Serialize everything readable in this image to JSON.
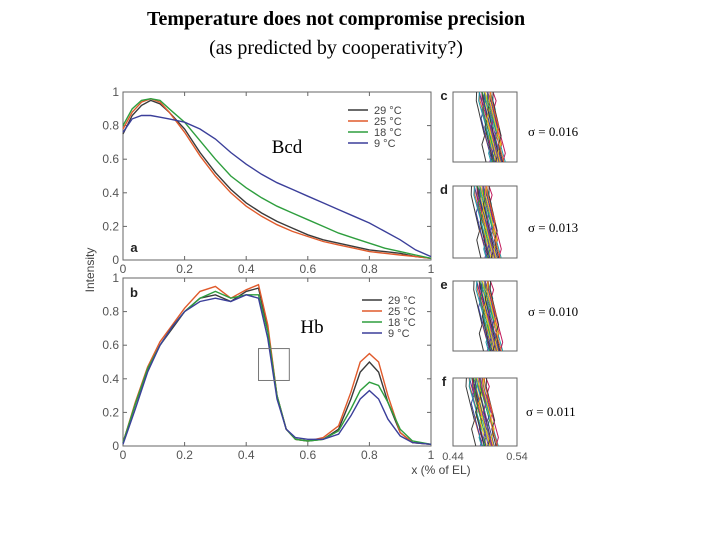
{
  "slide": {
    "title": "Temperature does not compromise precision",
    "subtitle": "(as predicted by cooperativity?)"
  },
  "chart_data": [
    {
      "type": "line",
      "panel": "a",
      "label": "Bcd",
      "ylabel": "Intensity",
      "xlim": [
        0,
        1
      ],
      "ylim": [
        0,
        1
      ],
      "xticks": [
        "0",
        "0.2",
        "0.4",
        "0.6",
        "0.8",
        "1"
      ],
      "yticks": [
        "0",
        "0.2",
        "0.4",
        "0.6",
        "0.8",
        "1"
      ],
      "legend": "top-right",
      "series": [
        {
          "name": "29 °C",
          "color": "#3a3a3a",
          "x": [
            0,
            0.03,
            0.06,
            0.09,
            0.12,
            0.15,
            0.2,
            0.25,
            0.3,
            0.35,
            0.4,
            0.45,
            0.5,
            0.55,
            0.6,
            0.65,
            0.7,
            0.75,
            0.8,
            0.85,
            0.9,
            0.95,
            1.0
          ],
          "y": [
            0.75,
            0.86,
            0.92,
            0.95,
            0.93,
            0.88,
            0.78,
            0.64,
            0.52,
            0.42,
            0.34,
            0.28,
            0.23,
            0.19,
            0.15,
            0.12,
            0.1,
            0.08,
            0.06,
            0.05,
            0.04,
            0.02,
            0.01
          ]
        },
        {
          "name": "25 °C",
          "color": "#e05a2b",
          "x": [
            0,
            0.03,
            0.06,
            0.09,
            0.12,
            0.15,
            0.2,
            0.25,
            0.3,
            0.35,
            0.4,
            0.45,
            0.5,
            0.55,
            0.6,
            0.65,
            0.7,
            0.75,
            0.8,
            0.85,
            0.9,
            0.95,
            1.0
          ],
          "y": [
            0.78,
            0.88,
            0.94,
            0.96,
            0.94,
            0.88,
            0.76,
            0.62,
            0.5,
            0.4,
            0.32,
            0.26,
            0.21,
            0.17,
            0.14,
            0.11,
            0.09,
            0.07,
            0.05,
            0.04,
            0.03,
            0.02,
            0.01
          ]
        },
        {
          "name": "18 °C",
          "color": "#2e9e3e",
          "x": [
            0,
            0.03,
            0.06,
            0.09,
            0.12,
            0.15,
            0.2,
            0.25,
            0.3,
            0.35,
            0.4,
            0.45,
            0.5,
            0.55,
            0.6,
            0.65,
            0.7,
            0.75,
            0.8,
            0.85,
            0.9,
            0.95,
            1.0
          ],
          "y": [
            0.8,
            0.9,
            0.95,
            0.96,
            0.95,
            0.9,
            0.82,
            0.71,
            0.6,
            0.5,
            0.43,
            0.37,
            0.32,
            0.28,
            0.24,
            0.2,
            0.16,
            0.13,
            0.1,
            0.07,
            0.05,
            0.03,
            0.01
          ]
        },
        {
          "name": "9 °C",
          "color": "#3b3f9a",
          "x": [
            0,
            0.03,
            0.06,
            0.09,
            0.12,
            0.15,
            0.2,
            0.25,
            0.3,
            0.35,
            0.4,
            0.45,
            0.5,
            0.55,
            0.6,
            0.65,
            0.7,
            0.75,
            0.8,
            0.85,
            0.9,
            0.95,
            1.0
          ],
          "y": [
            0.76,
            0.84,
            0.86,
            0.86,
            0.85,
            0.84,
            0.82,
            0.78,
            0.72,
            0.64,
            0.57,
            0.51,
            0.46,
            0.42,
            0.38,
            0.34,
            0.3,
            0.26,
            0.22,
            0.17,
            0.12,
            0.06,
            0.02
          ]
        }
      ]
    },
    {
      "type": "line",
      "panel": "b",
      "label": "Hb",
      "xlabel": "x (% of EL)",
      "xlim": [
        0,
        1
      ],
      "ylim": [
        0,
        1
      ],
      "xticks": [
        "0",
        "0.2",
        "0.4",
        "0.6",
        "0.8",
        "1"
      ],
      "yticks": [
        "0",
        "0.2",
        "0.4",
        "0.6",
        "0.8",
        "1"
      ],
      "legend": "top-right",
      "inset_box_x": [
        0.44,
        0.54
      ],
      "series": [
        {
          "name": "29 °C",
          "color": "#3a3a3a",
          "x": [
            0,
            0.04,
            0.08,
            0.12,
            0.16,
            0.2,
            0.25,
            0.3,
            0.35,
            0.4,
            0.44,
            0.47,
            0.5,
            0.53,
            0.56,
            0.6,
            0.65,
            0.7,
            0.74,
            0.77,
            0.8,
            0.83,
            0.86,
            0.9,
            0.94,
            1.0
          ],
          "y": [
            0.02,
            0.25,
            0.45,
            0.6,
            0.7,
            0.8,
            0.88,
            0.9,
            0.86,
            0.92,
            0.94,
            0.7,
            0.3,
            0.1,
            0.04,
            0.03,
            0.04,
            0.1,
            0.28,
            0.44,
            0.5,
            0.44,
            0.26,
            0.08,
            0.02,
            0.01
          ]
        },
        {
          "name": "25 °C",
          "color": "#e05a2b",
          "x": [
            0,
            0.04,
            0.08,
            0.12,
            0.16,
            0.2,
            0.25,
            0.3,
            0.35,
            0.4,
            0.44,
            0.47,
            0.5,
            0.53,
            0.56,
            0.6,
            0.65,
            0.7,
            0.74,
            0.77,
            0.8,
            0.83,
            0.86,
            0.9,
            0.94,
            1.0
          ],
          "y": [
            0.02,
            0.26,
            0.47,
            0.62,
            0.72,
            0.82,
            0.92,
            0.95,
            0.88,
            0.93,
            0.96,
            0.72,
            0.3,
            0.1,
            0.04,
            0.03,
            0.05,
            0.12,
            0.32,
            0.5,
            0.55,
            0.5,
            0.3,
            0.08,
            0.02,
            0.01
          ]
        },
        {
          "name": "18 °C",
          "color": "#2e9e3e",
          "x": [
            0,
            0.04,
            0.08,
            0.12,
            0.16,
            0.2,
            0.25,
            0.3,
            0.35,
            0.4,
            0.44,
            0.47,
            0.5,
            0.53,
            0.56,
            0.6,
            0.65,
            0.7,
            0.74,
            0.77,
            0.8,
            0.83,
            0.86,
            0.9,
            0.94,
            1.0
          ],
          "y": [
            0.02,
            0.25,
            0.46,
            0.6,
            0.71,
            0.8,
            0.88,
            0.92,
            0.88,
            0.9,
            0.9,
            0.68,
            0.3,
            0.1,
            0.04,
            0.03,
            0.04,
            0.09,
            0.22,
            0.33,
            0.38,
            0.36,
            0.26,
            0.1,
            0.03,
            0.01
          ]
        },
        {
          "name": "9 °C",
          "color": "#3b3f9a",
          "x": [
            0,
            0.04,
            0.08,
            0.12,
            0.16,
            0.2,
            0.25,
            0.3,
            0.35,
            0.4,
            0.44,
            0.47,
            0.5,
            0.53,
            0.56,
            0.6,
            0.65,
            0.7,
            0.74,
            0.77,
            0.8,
            0.83,
            0.86,
            0.9,
            0.94,
            1.0
          ],
          "y": [
            0.01,
            0.22,
            0.44,
            0.6,
            0.71,
            0.8,
            0.86,
            0.88,
            0.86,
            0.9,
            0.88,
            0.64,
            0.28,
            0.1,
            0.05,
            0.04,
            0.04,
            0.07,
            0.18,
            0.28,
            0.33,
            0.28,
            0.16,
            0.06,
            0.02,
            0.01
          ]
        }
      ]
    }
  ],
  "insets": [
    {
      "panel": "c",
      "sigma_label": "σ = 0.016",
      "palette": [
        "#3a3a3a",
        "#e05a2b",
        "#2e9e3e",
        "#3b3f9a",
        "#7b3fa0",
        "#1f9fa8",
        "#c2185b",
        "#e8c517"
      ]
    },
    {
      "panel": "d",
      "sigma_label": "σ = 0.013",
      "palette": [
        "#3a3a3a",
        "#e05a2b",
        "#2e9e3e",
        "#3b3f9a",
        "#7b3fa0",
        "#1f9fa8",
        "#c2185b",
        "#e8c517"
      ]
    },
    {
      "panel": "e",
      "sigma_label": "σ = 0.010",
      "palette": [
        "#3a3a3a",
        "#e05a2b",
        "#2e9e3e",
        "#3b3f9a",
        "#7b3fa0",
        "#1f9fa8",
        "#c2185b",
        "#e8c517"
      ]
    },
    {
      "panel": "f",
      "sigma_label": "σ = 0.011",
      "palette": [
        "#3a3a3a",
        "#e05a2b",
        "#2e9e3e",
        "#3b3f9a",
        "#7b3fa0",
        "#1f9fa8",
        "#c2185b",
        "#e8c517"
      ],
      "xticks": [
        "0.44",
        "0.54"
      ]
    }
  ]
}
